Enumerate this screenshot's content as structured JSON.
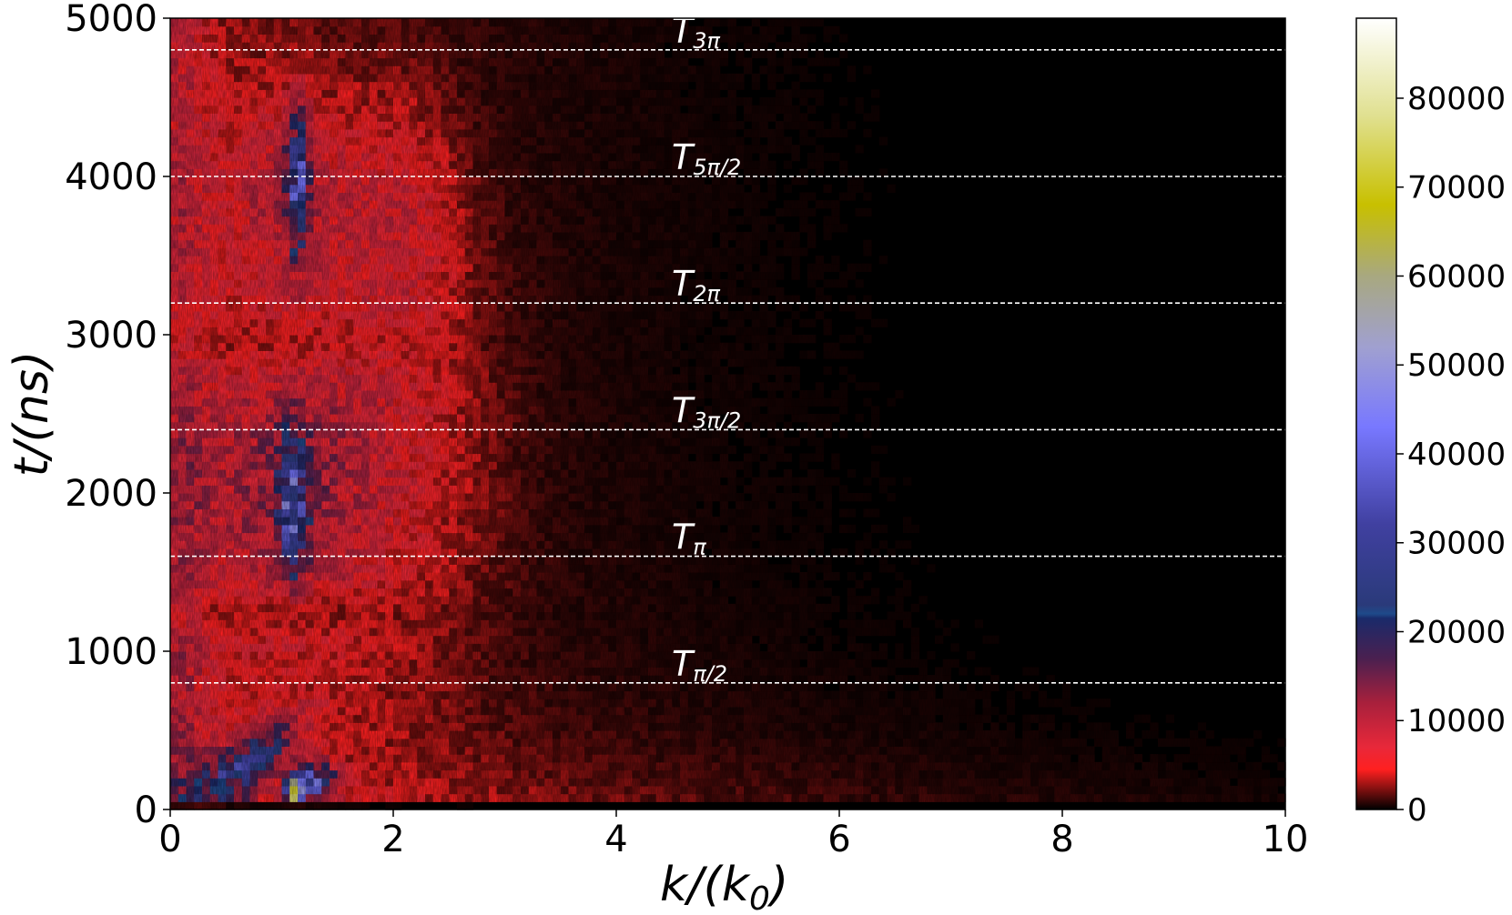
{
  "chart_data": {
    "type": "heatmap",
    "xlabel": "k/(k",
    "xlabel_sub": "0",
    "xlabel_close": ")",
    "ylabel": "t/(ns)",
    "xlim": [
      0,
      10
    ],
    "ylim": [
      0,
      5000
    ],
    "xticks": [
      "0",
      "2",
      "4",
      "6",
      "8",
      "10"
    ],
    "xtick_values": [
      0,
      2,
      4,
      6,
      8,
      10
    ],
    "yticks": [
      "0",
      "1000",
      "2000",
      "3000",
      "4000",
      "5000"
    ],
    "ytick_values": [
      0,
      1000,
      2000,
      3000,
      4000,
      5000
    ],
    "colorbar": {
      "range": [
        0,
        89000
      ],
      "ticks": [
        "0",
        "10000",
        "20000",
        "30000",
        "40000",
        "50000",
        "60000",
        "70000",
        "80000"
      ],
      "tick_values": [
        0,
        10000,
        20000,
        30000,
        40000,
        50000,
        60000,
        70000,
        80000
      ],
      "colormap": [
        {
          "v": 0,
          "color": "#000000"
        },
        {
          "v": 4500,
          "color": "#ff2020"
        },
        {
          "v": 7000,
          "color": "#e8283a"
        },
        {
          "v": 12000,
          "color": "#a8203c"
        },
        {
          "v": 17000,
          "color": "#4a2050"
        },
        {
          "v": 21500,
          "color": "#1a2a6a"
        },
        {
          "v": 22000,
          "color": "#1e4a8a"
        },
        {
          "v": 23000,
          "color": "#2a3a7a"
        },
        {
          "v": 32000,
          "color": "#4040a0"
        },
        {
          "v": 43000,
          "color": "#7878ff"
        },
        {
          "v": 52000,
          "color": "#a0a0d0"
        },
        {
          "v": 60000,
          "color": "#a8a880"
        },
        {
          "v": 68000,
          "color": "#c8c000"
        },
        {
          "v": 78000,
          "color": "#e0e090"
        },
        {
          "v": 89000,
          "color": "#ffffff"
        }
      ]
    },
    "reference_lines": [
      {
        "t": 800,
        "label": "T",
        "sub": "π/2"
      },
      {
        "t": 1600,
        "label": "T",
        "sub": "π"
      },
      {
        "t": 2400,
        "label": "T",
        "sub": "3π/2"
      },
      {
        "t": 3200,
        "label": "T",
        "sub": "2π"
      },
      {
        "t": 4000,
        "label": "T",
        "sub": "5π/2"
      },
      {
        "t": 4800,
        "label": "T",
        "sub": "3π"
      }
    ],
    "reference_line_style": {
      "color": "#ffffff",
      "dash": "dashed"
    },
    "features": [
      {
        "k": 1.1,
        "t": 150,
        "peak": 85000,
        "desc": "bright spot near k=1"
      },
      {
        "k": 1.1,
        "t": 1900,
        "peak": 40000
      },
      {
        "k": 1.15,
        "t": 3900,
        "peak": 35000
      }
    ]
  }
}
